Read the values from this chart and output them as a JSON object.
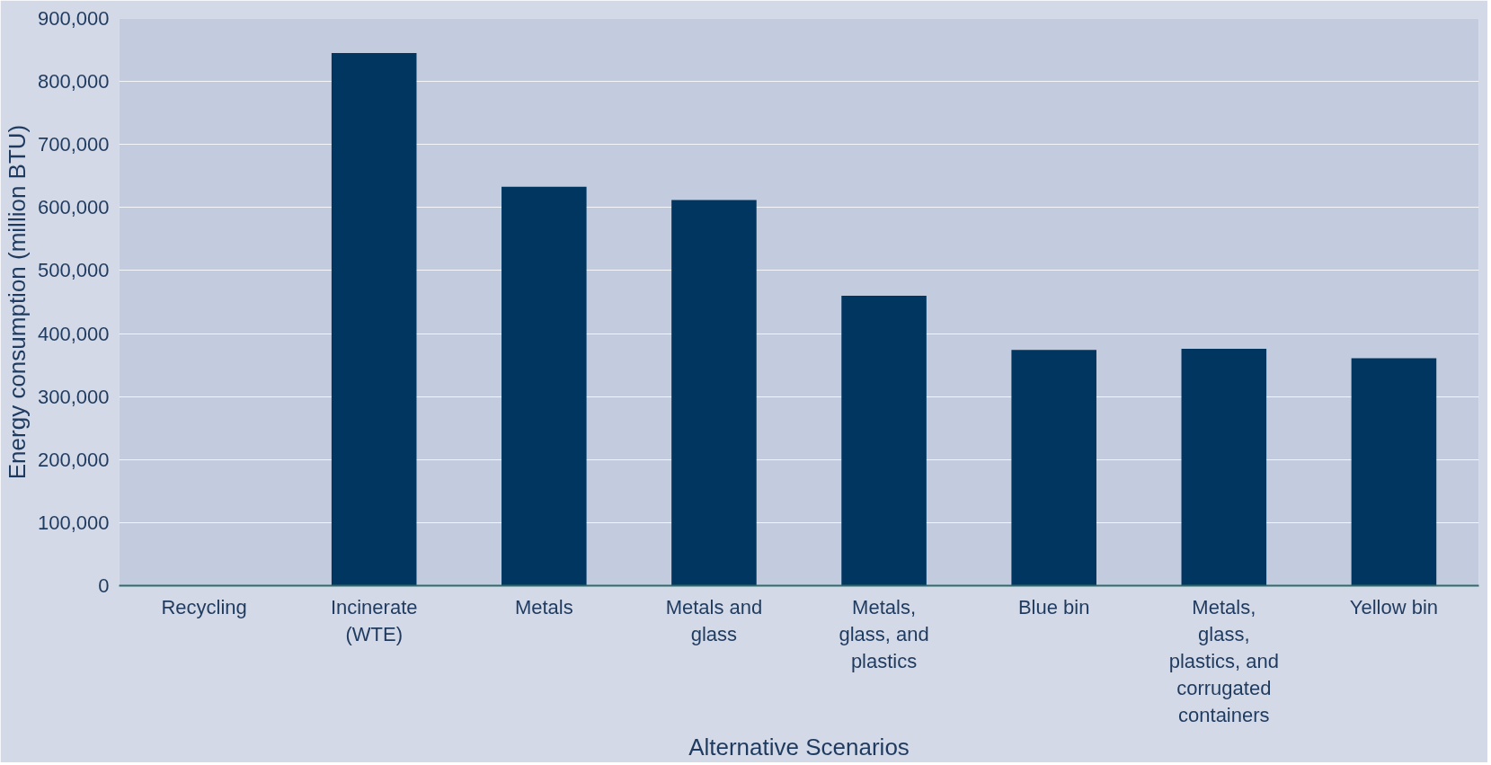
{
  "chart_data": {
    "type": "bar",
    "xlabel": "Alternative Scenarios",
    "ylabel": "Energy consumption (million BTU)",
    "categories": [
      "Recycling",
      "Incinerate (WTE)",
      "Metals",
      "Metals and glass",
      "Metals, glass, and plastics",
      "Blue bin",
      "Metals, glass, plastics, and corrugated containers",
      "Yellow bin"
    ],
    "values": [
      0,
      845000,
      633000,
      612000,
      460000,
      374000,
      376000,
      361000
    ],
    "color": "#003660",
    "ylim": [
      0,
      900000
    ],
    "yticks": [
      0,
      {
        "value": 100000,
        "label": "100,000"
      },
      {
        "value": 200000,
        "label": "200,000"
      },
      {
        "value": 300000,
        "label": "300,000"
      },
      {
        "value": 400000,
        "label": "400,000"
      },
      {
        "value": 500000,
        "label": "500,000"
      },
      {
        "value": 600000,
        "label": "600,000"
      },
      {
        "value": 700000,
        "label": "700,000"
      },
      {
        "value": 800000,
        "label": "800,000"
      },
      {
        "value": 900000,
        "label": "900,000"
      }
    ],
    "grid": "y"
  }
}
